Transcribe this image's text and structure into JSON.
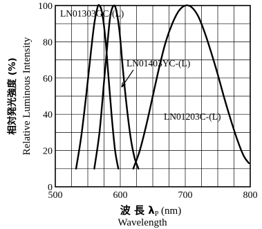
{
  "chart_data": {
    "type": "line",
    "xlabel": "波 長 λP (nm)",
    "xlabel_parts": {
      "main": "波 長 λ",
      "sub": "P",
      "unit": " (nm)"
    },
    "xlabel_en": "Wavelength",
    "ylabel": "相対発光強度 (%)",
    "ylabel_en": "Relative Luminous Intensity",
    "xlim": [
      500,
      800
    ],
    "ylim": [
      0,
      100
    ],
    "x_ticks": [
      "500",
      "600",
      "700",
      "800"
    ],
    "y_ticks": [
      "0",
      "20",
      "40",
      "60",
      "80",
      "100"
    ],
    "grid": true,
    "series": [
      {
        "name": "LN01303GC-(L)",
        "x": [
          532,
          540,
          548,
          555,
          560,
          565,
          568,
          572,
          577,
          582,
          587,
          592,
          597
        ],
        "y": [
          10,
          28,
          52,
          75,
          90,
          99,
          100,
          96,
          82,
          60,
          38,
          20,
          10
        ]
      },
      {
        "name": "LN01403YC-(L)",
        "x": [
          560,
          568,
          575,
          581,
          585,
          590,
          594,
          599,
          604,
          610,
          616,
          622,
          628
        ],
        "y": [
          10,
          30,
          58,
          82,
          95,
          100,
          97,
          85,
          65,
          44,
          27,
          16,
          10
        ]
      },
      {
        "name": "LN01203C-(L)",
        "x": [
          620,
          630,
          640,
          650,
          660,
          670,
          680,
          690,
          700,
          710,
          720,
          730,
          740,
          750,
          760,
          770,
          780,
          790,
          798
        ],
        "y": [
          10,
          20,
          34,
          50,
          66,
          80,
          90,
          97,
          100,
          99,
          94,
          85,
          74,
          62,
          49,
          37,
          26,
          17,
          13
        ]
      }
    ]
  }
}
